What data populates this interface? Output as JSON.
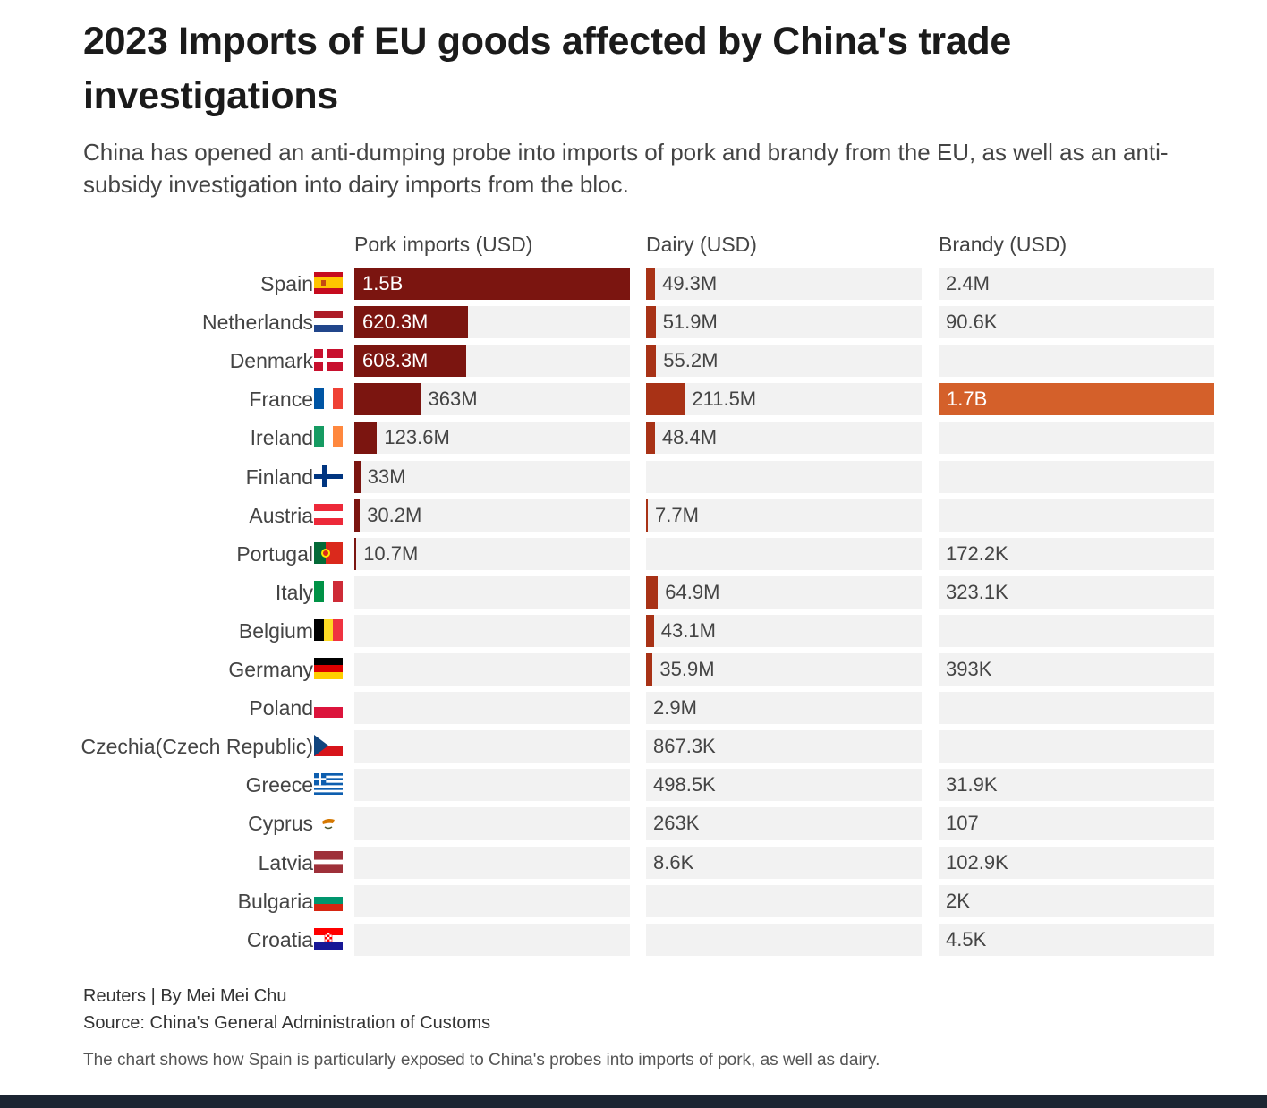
{
  "title": "2023 Imports of EU goods affected by China's trade investigations",
  "subtitle": "China has opened an anti-dumping probe into imports of pork and brandy from the EU, as well as an anti-subsidy investigation into dairy imports from the bloc.",
  "chart_data": {
    "type": "bar",
    "columns": [
      {
        "key": "pork",
        "label": "Pork imports (USD)",
        "color": "#7b1510",
        "max": 1500000000
      },
      {
        "key": "dairy",
        "label": "Dairy (USD)",
        "color": "#a83216",
        "max": 1500000000
      },
      {
        "key": "brandy",
        "label": "Brandy (USD)",
        "color": "#d4602a",
        "max": 1700000000
      }
    ],
    "rows": [
      {
        "country": "Spain",
        "flag": "es",
        "pork": 1500000000,
        "pork_label": "1.5B",
        "dairy": 49300000,
        "dairy_label": "49.3M",
        "brandy": 2400000,
        "brandy_label": "2.4M"
      },
      {
        "country": "Netherlands",
        "flag": "nl",
        "pork": 620300000,
        "pork_label": "620.3M",
        "dairy": 51900000,
        "dairy_label": "51.9M",
        "brandy": 90600,
        "brandy_label": "90.6K"
      },
      {
        "country": "Denmark",
        "flag": "dk",
        "pork": 608300000,
        "pork_label": "608.3M",
        "dairy": 55200000,
        "dairy_label": "55.2M",
        "brandy": null,
        "brandy_label": ""
      },
      {
        "country": "France",
        "flag": "fr",
        "pork": 363000000,
        "pork_label": "363M",
        "dairy": 211500000,
        "dairy_label": "211.5M",
        "brandy": 1700000000,
        "brandy_label": "1.7B"
      },
      {
        "country": "Ireland",
        "flag": "ie",
        "pork": 123600000,
        "pork_label": "123.6M",
        "dairy": 48400000,
        "dairy_label": "48.4M",
        "brandy": null,
        "brandy_label": ""
      },
      {
        "country": "Finland",
        "flag": "fi",
        "pork": 33000000,
        "pork_label": "33M",
        "dairy": null,
        "dairy_label": "",
        "brandy": null,
        "brandy_label": ""
      },
      {
        "country": "Austria",
        "flag": "at",
        "pork": 30200000,
        "pork_label": "30.2M",
        "dairy": 7700000,
        "dairy_label": "7.7M",
        "brandy": null,
        "brandy_label": ""
      },
      {
        "country": "Portugal",
        "flag": "pt",
        "pork": 10700000,
        "pork_label": "10.7M",
        "dairy": null,
        "dairy_label": "",
        "brandy": 172200,
        "brandy_label": "172.2K"
      },
      {
        "country": "Italy",
        "flag": "it",
        "pork": null,
        "pork_label": "",
        "dairy": 64900000,
        "dairy_label": "64.9M",
        "brandy": 323100,
        "brandy_label": "323.1K"
      },
      {
        "country": "Belgium",
        "flag": "be",
        "pork": null,
        "pork_label": "",
        "dairy": 43100000,
        "dairy_label": "43.1M",
        "brandy": null,
        "brandy_label": ""
      },
      {
        "country": "Germany",
        "flag": "de",
        "pork": null,
        "pork_label": "",
        "dairy": 35900000,
        "dairy_label": "35.9M",
        "brandy": 393000,
        "brandy_label": "393K"
      },
      {
        "country": "Poland",
        "flag": "pl",
        "pork": null,
        "pork_label": "",
        "dairy": 2900000,
        "dairy_label": "2.9M",
        "brandy": null,
        "brandy_label": ""
      },
      {
        "country": "Czechia(Czech Republic)",
        "flag": "cz",
        "pork": null,
        "pork_label": "",
        "dairy": 867300,
        "dairy_label": "867.3K",
        "brandy": null,
        "brandy_label": ""
      },
      {
        "country": "Greece",
        "flag": "gr",
        "pork": null,
        "pork_label": "",
        "dairy": 498500,
        "dairy_label": "498.5K",
        "brandy": 31900,
        "brandy_label": "31.9K"
      },
      {
        "country": "Cyprus",
        "flag": "cy",
        "pork": null,
        "pork_label": "",
        "dairy": 263000,
        "dairy_label": "263K",
        "brandy": 107,
        "brandy_label": "107"
      },
      {
        "country": "Latvia",
        "flag": "lv",
        "pork": null,
        "pork_label": "",
        "dairy": 8600,
        "dairy_label": "8.6K",
        "brandy": 102900,
        "brandy_label": "102.9K"
      },
      {
        "country": "Bulgaria",
        "flag": "bg",
        "pork": null,
        "pork_label": "",
        "dairy": null,
        "dairy_label": "",
        "brandy": 2000,
        "brandy_label": "2K"
      },
      {
        "country": "Croatia",
        "flag": "hr",
        "pork": null,
        "pork_label": "",
        "dairy": null,
        "dairy_label": "",
        "brandy": 4500,
        "brandy_label": "4.5K"
      }
    ]
  },
  "footer": {
    "credit": "Reuters | By Mei Mei Chu",
    "source": "Source: China's General Administration of Customs",
    "note": "The chart shows how Spain is particularly exposed to China's probes into imports of pork, as well as dairy."
  }
}
